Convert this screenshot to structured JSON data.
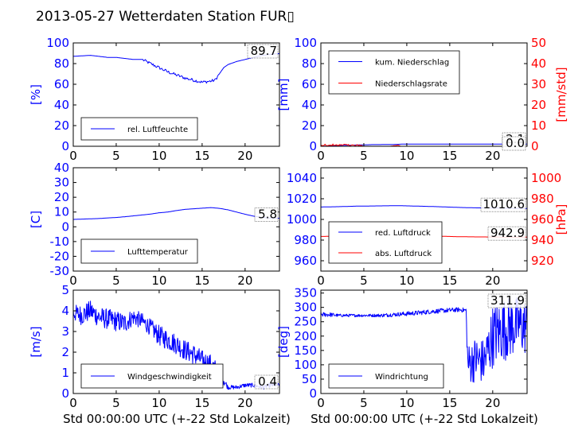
{
  "figure": {
    "title": "2013-05-27 Wetterdaten Station FUR▯",
    "xlabel": "Std 00:00:00 UTC (+-22 Std Lokalzeit)"
  },
  "colors": {
    "primary": "#0000ff",
    "secondary": "#ff0000",
    "axis": "#000000"
  },
  "chart_data": [
    {
      "id": "humidity",
      "type": "line",
      "ylabel": "[%]",
      "xlim": [
        0,
        24
      ],
      "ylim": [
        0,
        100
      ],
      "xticks": [
        0,
        5,
        10,
        15,
        20
      ],
      "yticks": [
        0,
        20,
        40,
        60,
        80,
        100
      ],
      "annotation": "89.7",
      "legend_placement": "lower-left",
      "series": [
        {
          "name": "rel. Luftfeuchte",
          "color": "#0000ff",
          "x": [
            0,
            1,
            2,
            3,
            4,
            5,
            6,
            7,
            8,
            9,
            10,
            11,
            12,
            13,
            14,
            15,
            16,
            16.5,
            17,
            17.5,
            18,
            19,
            20,
            21,
            22,
            23,
            24
          ],
          "y": [
            87,
            87.5,
            88,
            87,
            86,
            86,
            85,
            84,
            84,
            80,
            76,
            72,
            69,
            66,
            64,
            62,
            63,
            64,
            70,
            76,
            79,
            82,
            84,
            86,
            88,
            89,
            89.7
          ]
        }
      ]
    },
    {
      "id": "precip",
      "type": "line",
      "ylabel": "[mm]",
      "ylabel2": "[mm/std]",
      "xlim": [
        0,
        24
      ],
      "ylim": [
        0,
        100
      ],
      "ylim2": [
        0,
        50
      ],
      "xticks": [
        0,
        5,
        10,
        15,
        20
      ],
      "yticks": [
        0,
        20,
        40,
        60,
        80,
        100
      ],
      "yticks2": [
        0,
        10,
        20,
        30,
        40,
        50
      ],
      "annotation": "2.1",
      "annotation2": "0.0",
      "legend_placement": "upper-left",
      "series": [
        {
          "name": "kum. Niederschlag",
          "color": "#0000ff",
          "axis": "left",
          "x": [
            0,
            1,
            2,
            3,
            4,
            5,
            6,
            8,
            9,
            9.5,
            12,
            16,
            20,
            24
          ],
          "y": [
            0,
            0.4,
            0.8,
            1.0,
            1.2,
            1.4,
            1.6,
            1.7,
            1.9,
            2.1,
            2.1,
            2.1,
            2.1,
            2.1
          ]
        },
        {
          "name": "Niederschlagsrate",
          "color": "#ff0000",
          "axis": "right",
          "x": [
            0,
            0.5,
            1,
            1.5,
            2,
            2.5,
            3,
            3.5,
            4,
            4.5,
            5,
            6,
            8,
            9,
            9.3,
            10,
            24
          ],
          "y": [
            0,
            0.5,
            0.2,
            0.8,
            0.3,
            1.0,
            0.4,
            0.7,
            0.2,
            0.6,
            0,
            0,
            0,
            0.5,
            0,
            0,
            0
          ]
        }
      ]
    },
    {
      "id": "temperature",
      "type": "line",
      "ylabel": "[C]",
      "xlim": [
        0,
        24
      ],
      "ylim": [
        -30,
        40
      ],
      "xticks": [
        0,
        5,
        10,
        15,
        20
      ],
      "yticks": [
        -30,
        -20,
        -10,
        0,
        10,
        20,
        30,
        40
      ],
      "annotation": "5.8",
      "legend_placement": "lower-left",
      "series": [
        {
          "name": "Lufttemperatur",
          "color": "#0000ff",
          "x": [
            0,
            1,
            2,
            3,
            4,
            5,
            6,
            7,
            8,
            9,
            10,
            11,
            12,
            13,
            14,
            15,
            16,
            17,
            18,
            19,
            20,
            21,
            22,
            23,
            24
          ],
          "y": [
            5,
            5.2,
            5.4,
            5.6,
            6,
            6.3,
            6.8,
            7.4,
            8,
            8.6,
            9.5,
            10,
            11,
            11.8,
            12.2,
            12.6,
            13,
            12.5,
            11.5,
            10,
            8.5,
            7.2,
            6.3,
            5.9,
            5.8
          ]
        }
      ]
    },
    {
      "id": "pressure",
      "type": "line",
      "ylabel2": "[hPa]",
      "xlim": [
        0,
        24
      ],
      "ylim": [
        950,
        1050
      ],
      "ylim2": [
        910,
        1010
      ],
      "xticks": [
        0,
        5,
        10,
        15,
        20
      ],
      "yticks": [
        960,
        980,
        1000,
        1020,
        1040
      ],
      "yticks2": [
        920,
        940,
        960,
        980,
        1000
      ],
      "annotation": "1010.6",
      "annotation2": "942.9",
      "legend_placement": "lower-left",
      "series": [
        {
          "name": "red. Luftdruck",
          "color": "#0000ff",
          "axis": "left",
          "x": [
            0,
            2,
            4,
            6,
            8,
            9,
            10,
            12,
            14,
            16,
            18,
            20,
            22,
            24
          ],
          "y": [
            1012,
            1012.3,
            1012.8,
            1013,
            1013.2,
            1013.3,
            1013.1,
            1012.7,
            1012.2,
            1011.6,
            1011.2,
            1011,
            1010.8,
            1010.6
          ]
        },
        {
          "name": "abs. Luftdruck",
          "color": "#ff0000",
          "axis": "right",
          "x": [
            0,
            2,
            4,
            6,
            8,
            9,
            10,
            12,
            14,
            16,
            18,
            20,
            22,
            24
          ],
          "y": [
            943.5,
            943.8,
            944.2,
            944.4,
            944.6,
            944.7,
            944.5,
            944.1,
            943.7,
            943.3,
            943.1,
            943,
            942.9,
            942.9
          ]
        }
      ]
    },
    {
      "id": "windspeed",
      "type": "line",
      "ylabel": "[m/s]",
      "xlim": [
        0,
        24
      ],
      "ylim": [
        0,
        5
      ],
      "xticks": [
        0,
        5,
        10,
        15,
        20
      ],
      "yticks": [
        0,
        1,
        2,
        3,
        4,
        5
      ],
      "annotation": "0.4",
      "legend_placement": "lower-left",
      "series": [
        {
          "name": "Windgeschwindigkeit",
          "color": "#0000ff",
          "x": [
            0,
            1,
            2,
            3,
            4,
            5,
            6,
            7,
            8,
            9,
            10,
            11,
            12,
            13,
            14,
            15,
            16,
            17,
            18,
            19,
            20,
            21,
            22,
            23,
            24
          ],
          "y": [
            3.9,
            3.8,
            4.0,
            3.7,
            3.6,
            3.5,
            3.4,
            3.7,
            3.5,
            3.2,
            2.8,
            2.6,
            2.4,
            2.1,
            1.9,
            1.6,
            1.4,
            1.0,
            0.3,
            0.3,
            0.4,
            0.4,
            0.3,
            0.4,
            0.4
          ],
          "noise": [
            0.4,
            0.5,
            0.5,
            0.5,
            0.5,
            0.5,
            0.5,
            0.4,
            0.4,
            0.4,
            0.5,
            0.5,
            0.5,
            0.5,
            0.5,
            0.5,
            0.5,
            0.4,
            0.1,
            0.1,
            0.1,
            0.1,
            0.1,
            0.1,
            0.1
          ]
        }
      ]
    },
    {
      "id": "winddir",
      "type": "line",
      "ylabel": "[deg]",
      "xlim": [
        0,
        24
      ],
      "ylim": [
        0,
        360
      ],
      "xticks": [
        0,
        5,
        10,
        15,
        20
      ],
      "yticks": [
        0,
        50,
        100,
        150,
        200,
        250,
        300,
        350
      ],
      "annotation": "311.9",
      "legend_placement": "lower-left",
      "series": [
        {
          "name": "Windrichtung",
          "color": "#0000ff",
          "x": [
            0,
            1,
            2,
            3,
            4,
            5,
            6,
            7,
            8,
            9,
            10,
            11,
            12,
            13,
            14,
            15,
            16,
            16.9,
            17.1,
            18,
            19,
            20,
            21,
            22,
            23,
            24
          ],
          "y": [
            275,
            275,
            272,
            272,
            272,
            272,
            272,
            272,
            274,
            276,
            278,
            280,
            283,
            286,
            288,
            290,
            292,
            290,
            100,
            120,
            110,
            200,
            220,
            230,
            240,
            230
          ],
          "noise": [
            8,
            8,
            5,
            5,
            5,
            5,
            5,
            6,
            7,
            7,
            8,
            8,
            8,
            8,
            8,
            8,
            8,
            8,
            70,
            80,
            80,
            110,
            110,
            110,
            100,
            100
          ]
        }
      ]
    }
  ]
}
